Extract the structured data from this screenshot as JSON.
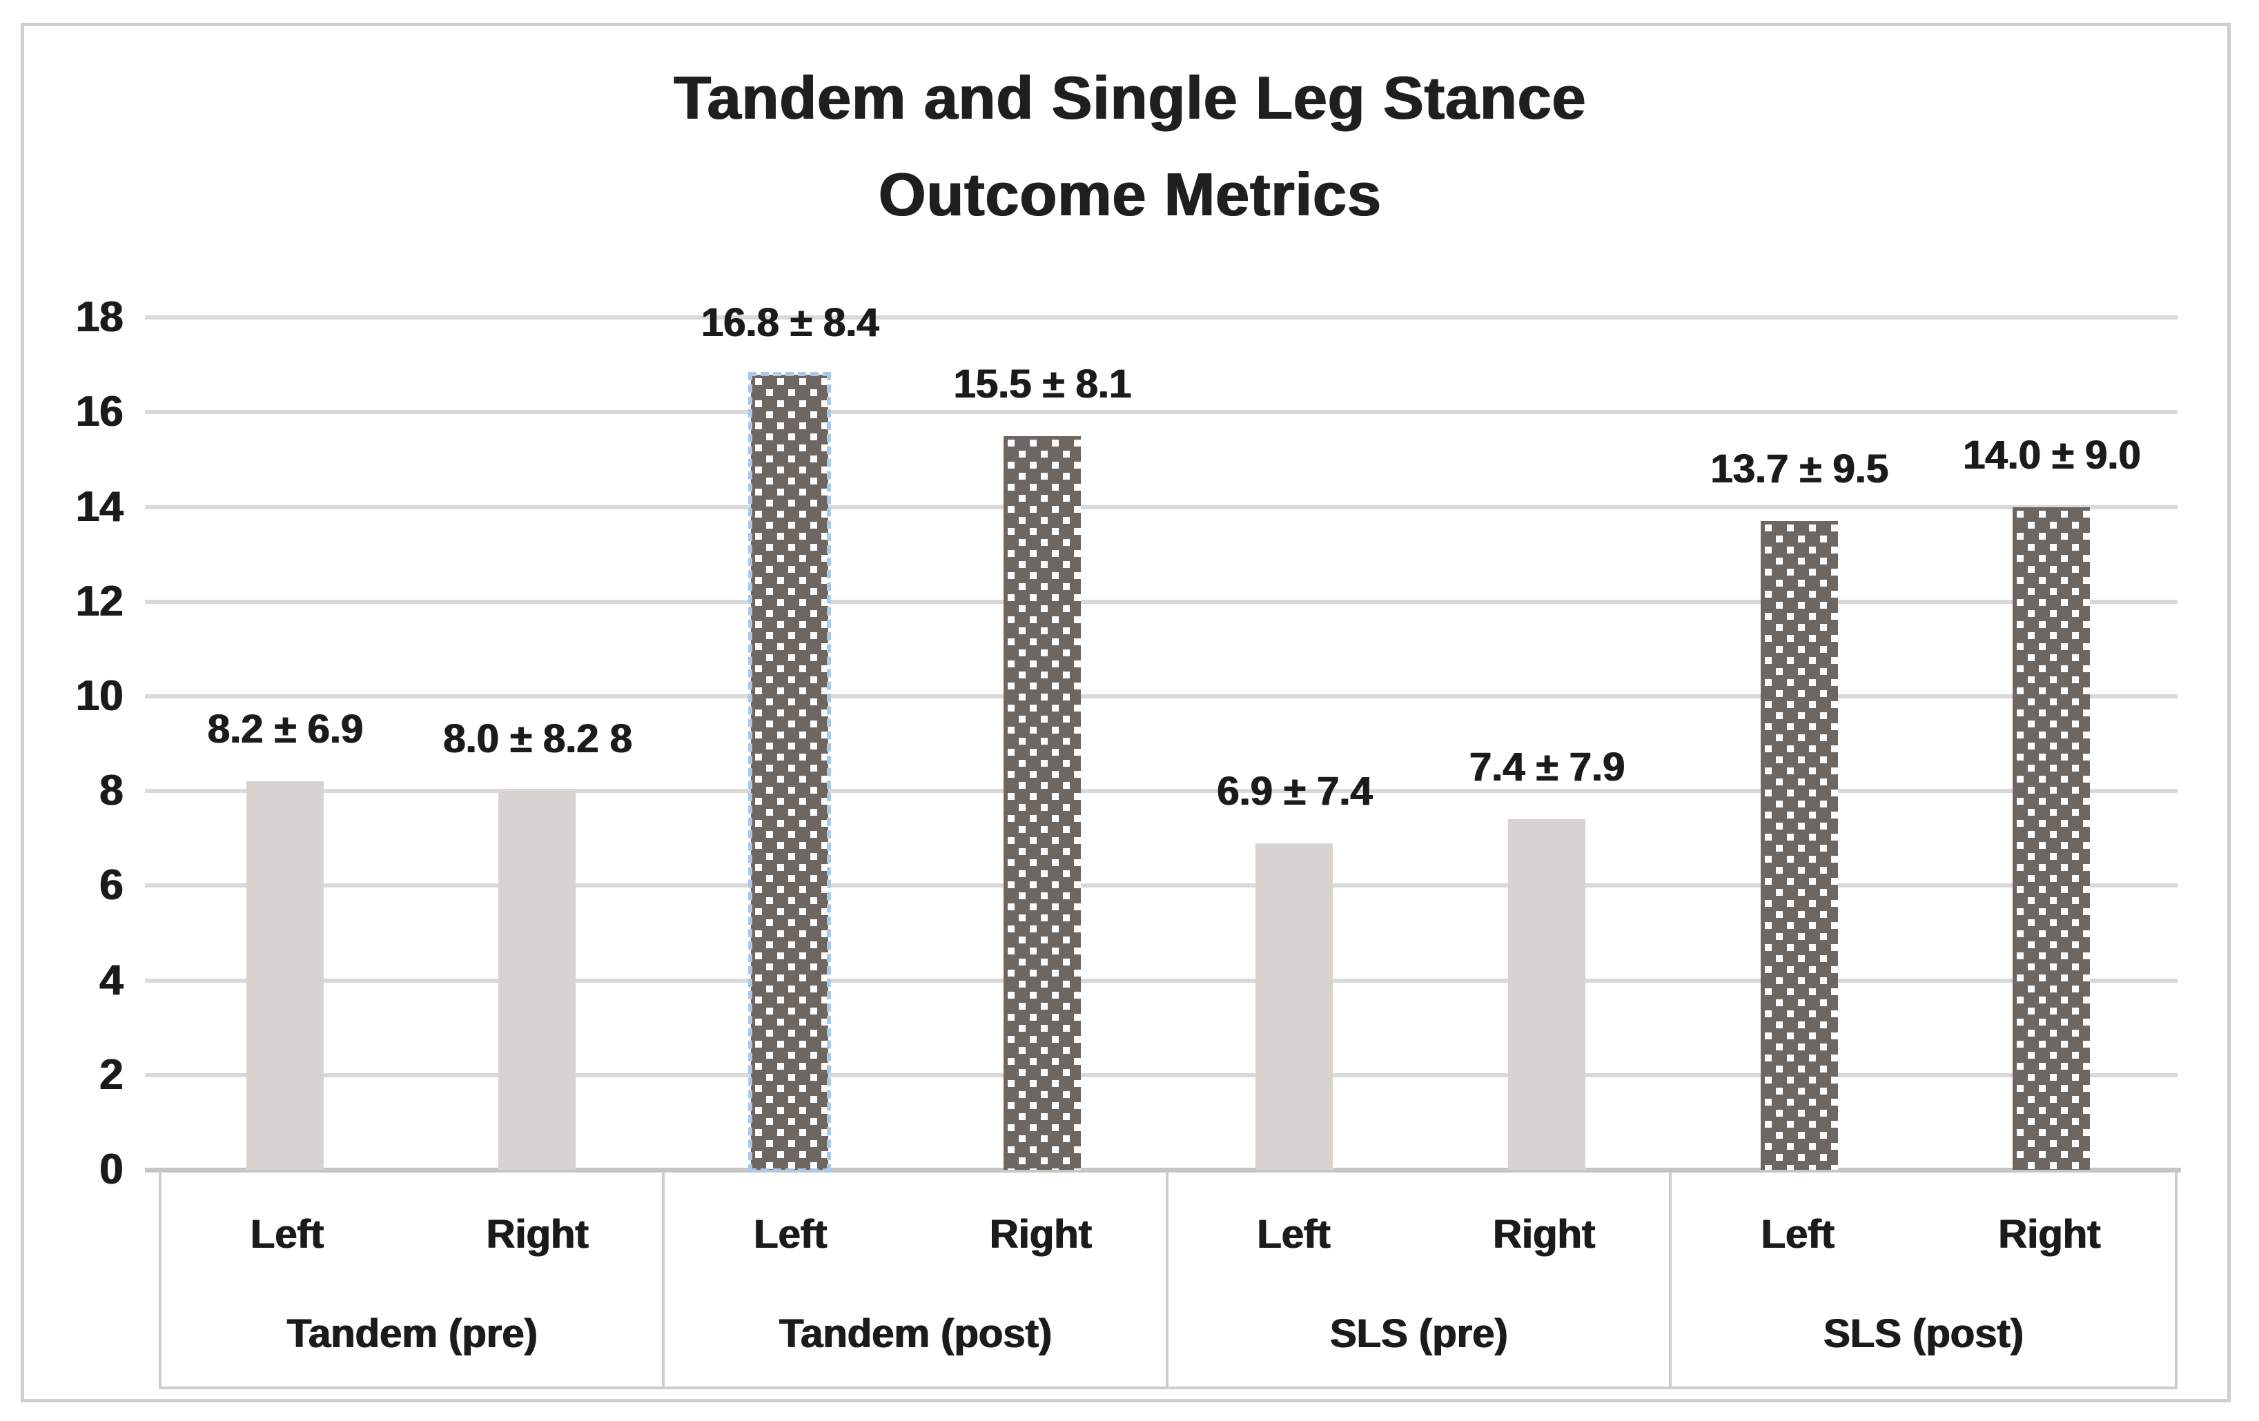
{
  "title": {
    "line1": "Tandem and Single Leg Stance",
    "line2": "Outcome Metrics"
  },
  "chart_data": {
    "type": "bar",
    "title": "Tandem and Single Leg Stance Outcome Metrics",
    "xlabel": "",
    "ylabel": "",
    "ylim": [
      0,
      18
    ],
    "yticks": [
      0,
      2,
      4,
      6,
      8,
      10,
      12,
      14,
      16,
      18
    ],
    "grid": true,
    "legend": "none",
    "groups": [
      {
        "label": "Tandem (pre)",
        "bars": [
          {
            "side": "Left",
            "value": 8.2,
            "sd": 6.9,
            "value_label": "8.2 ± 6.9",
            "style": "pre",
            "selected": false
          },
          {
            "side": "Right",
            "value": 8.0,
            "sd": 8.2,
            "value_label": "8.0 ± 8.2 8",
            "style": "pre",
            "selected": false
          }
        ]
      },
      {
        "label": "Tandem (post)",
        "bars": [
          {
            "side": "Left",
            "value": 16.8,
            "sd": 8.4,
            "value_label": "16.8 ± 8.4",
            "style": "post",
            "selected": true
          },
          {
            "side": "Right",
            "value": 15.5,
            "sd": 8.1,
            "value_label": "15.5 ± 8.1",
            "style": "post",
            "selected": false
          }
        ]
      },
      {
        "label": "SLS (pre)",
        "bars": [
          {
            "side": "Left",
            "value": 6.9,
            "sd": 7.4,
            "value_label": "6.9 ± 7.4",
            "style": "pre",
            "selected": false
          },
          {
            "side": "Right",
            "value": 7.4,
            "sd": 7.9,
            "value_label": "7.4 ± 7.9",
            "style": "pre",
            "selected": false
          }
        ]
      },
      {
        "label": "SLS (post)",
        "bars": [
          {
            "side": "Left",
            "value": 13.7,
            "sd": 9.5,
            "value_label": "13.7 ± 9.5",
            "style": "post",
            "selected": false
          },
          {
            "side": "Right",
            "value": 14.0,
            "sd": 9.0,
            "value_label": "14.0 ± 9.0",
            "style": "post",
            "selected": false
          }
        ]
      }
    ],
    "colors": {
      "bar_pre": "#d6d3d0",
      "bar_post": "#6e6661",
      "bar_post_dots": "#fdfdfd",
      "selection_outline": "#a9c8ea",
      "gridline": "#d9d9d9",
      "axis_line": "#c7c5c4",
      "box_border": "#cfcdcc",
      "frame_border": "#cfcfcf",
      "text": "#1b1b1b"
    }
  }
}
